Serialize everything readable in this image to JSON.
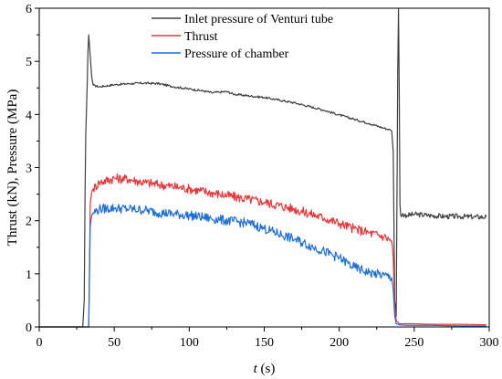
{
  "chart_data": {
    "type": "line",
    "xlabel": "t (s)",
    "xlabel_var": "t",
    "xlabel_unit": " (s)",
    "ylabel": "Thrust (kN), Pressure (MPa)",
    "xlim": [
      0,
      300
    ],
    "ylim": [
      0,
      6
    ],
    "x_ticks": [
      0,
      50,
      100,
      150,
      200,
      250,
      300
    ],
    "y_ticks": [
      0,
      1,
      2,
      3,
      4,
      5,
      6
    ],
    "grid": false,
    "legend_position": "top-center",
    "series": [
      {
        "name": "Inlet pressure of Venturi tube",
        "color": "#3f3f3f",
        "x": [
          0,
          29,
          30,
          30.5,
          31,
          32,
          32.5,
          33,
          34,
          35,
          36,
          40,
          50,
          60,
          70,
          80,
          90,
          100,
          110,
          115,
          120,
          125,
          130,
          150,
          170,
          190,
          200,
          210,
          220,
          230,
          234,
          235,
          236,
          237,
          238,
          239,
          239.5,
          240,
          240.5,
          241,
          242,
          245,
          250,
          260,
          270,
          280,
          290,
          298
        ],
        "y": [
          0,
          0,
          0.5,
          2.4,
          3.6,
          4.6,
          5.2,
          5.5,
          5.1,
          4.7,
          4.55,
          4.52,
          4.56,
          4.58,
          4.59,
          4.58,
          4.52,
          4.48,
          4.44,
          4.41,
          4.42,
          4.43,
          4.38,
          4.32,
          4.22,
          4.08,
          3.99,
          3.91,
          3.83,
          3.74,
          3.71,
          3.69,
          3.3,
          0.5,
          0.2,
          4.8,
          6.0,
          4.5,
          2.3,
          2.1,
          2.12,
          2.1,
          2.12,
          2.1,
          2.08,
          2.08,
          2.07,
          2.07
        ]
      },
      {
        "name": "Thrust",
        "color": "#e8353a",
        "x": [
          0,
          33,
          34,
          35,
          36,
          40,
          50,
          60,
          70,
          80,
          100,
          120,
          150,
          170,
          190,
          200,
          210,
          220,
          230,
          235,
          236,
          237,
          238,
          240,
          245,
          250,
          260,
          280,
          298
        ],
        "y": [
          0,
          0,
          2.3,
          2.55,
          2.6,
          2.72,
          2.8,
          2.78,
          2.72,
          2.68,
          2.6,
          2.5,
          2.35,
          2.22,
          2.05,
          1.95,
          1.85,
          1.77,
          1.7,
          1.62,
          1.3,
          0.4,
          0.12,
          0.06,
          0.06,
          0.06,
          0.05,
          0.05,
          0.04
        ]
      },
      {
        "name": "Pressure of chamber",
        "color": "#1f6fd8",
        "x": [
          0,
          33,
          34,
          35,
          36,
          40,
          50,
          60,
          70,
          80,
          100,
          120,
          140,
          150,
          170,
          190,
          200,
          210,
          220,
          230,
          235,
          236,
          237,
          238,
          240,
          245,
          250,
          260,
          280,
          298
        ],
        "y": [
          0,
          0,
          1.9,
          2.1,
          2.15,
          2.22,
          2.24,
          2.22,
          2.2,
          2.15,
          2.1,
          2.02,
          1.95,
          1.85,
          1.65,
          1.42,
          1.3,
          1.12,
          1.02,
          0.97,
          0.93,
          0.7,
          0.2,
          0.06,
          0.04,
          0.03,
          0.03,
          0.03,
          0.02,
          0.02
        ]
      }
    ]
  }
}
